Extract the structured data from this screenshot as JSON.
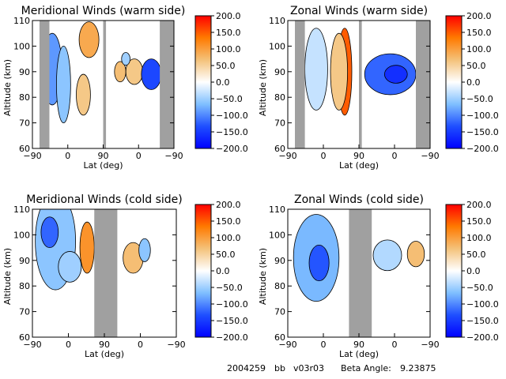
{
  "footer": {
    "date": "2004259",
    "label": "bb",
    "version": "v03r03",
    "beta_text": "Beta Angle:",
    "beta_value": "9.23875"
  },
  "colorbar": {
    "ticks": [
      "200.0",
      "150.0",
      "100.0",
      "50.0",
      "0.0",
      "−50.0",
      "−100.0",
      "−150.0",
      "−200.0"
    ],
    "stops": [
      "#ff0000",
      "#ff7a00",
      "#f4c27a",
      "#ffffff",
      "#7fbfff",
      "#1f4fff",
      "#0000ff"
    ]
  },
  "chart_data": [
    {
      "type": "heatmap",
      "title": "Meridional Winds (warm side)",
      "xlabel": "Lat (deg)",
      "ylabel": "Altitude (km)",
      "xticks": [
        "−90",
        "0",
        "90",
        "0",
        "−90"
      ],
      "yticks": [
        "60",
        "70",
        "80",
        "90",
        "100",
        "110"
      ],
      "ylim": [
        60,
        110
      ],
      "clim": [
        -200,
        200
      ],
      "data_gaps_x_fraction": [
        [
          0.05,
          0.12
        ],
        [
          0.5,
          0.52
        ],
        [
          0.9,
          1.0
        ]
      ]
    },
    {
      "type": "heatmap",
      "title": "Zonal Winds (warm side)",
      "xlabel": "Lat (deg)",
      "ylabel": "Altitude (km)",
      "xticks": [
        "−90",
        "0",
        "90",
        "0",
        "−90"
      ],
      "yticks": [
        "60",
        "70",
        "80",
        "90",
        "100",
        "110"
      ],
      "ylim": [
        60,
        110
      ],
      "clim": [
        -200,
        200
      ],
      "data_gaps_x_fraction": [
        [
          0.05,
          0.12
        ],
        [
          0.5,
          0.52
        ],
        [
          0.9,
          1.0
        ]
      ]
    },
    {
      "type": "heatmap",
      "title": "Meridional Winds (cold side)",
      "xlabel": "Lat (deg)",
      "ylabel": "Altitude (km)",
      "xticks": [
        "−90",
        "0",
        "90",
        "0",
        "−90"
      ],
      "yticks": [
        "60",
        "70",
        "80",
        "90",
        "100",
        "110"
      ],
      "ylim": [
        60,
        110
      ],
      "clim": [
        -200,
        200
      ],
      "data_gaps_x_fraction": [
        [
          0.43,
          0.59
        ]
      ]
    },
    {
      "type": "heatmap",
      "title": "Zonal Winds (cold side)",
      "xlabel": "Lat (deg)",
      "ylabel": "Altitude (km)",
      "xticks": [
        "−90",
        "0",
        "90",
        "0",
        "−90"
      ],
      "yticks": [
        "60",
        "70",
        "80",
        "90",
        "100",
        "110"
      ],
      "ylim": [
        60,
        110
      ],
      "clim": [
        -200,
        200
      ],
      "data_gaps_x_fraction": [
        [
          0.43,
          0.59
        ]
      ]
    }
  ]
}
